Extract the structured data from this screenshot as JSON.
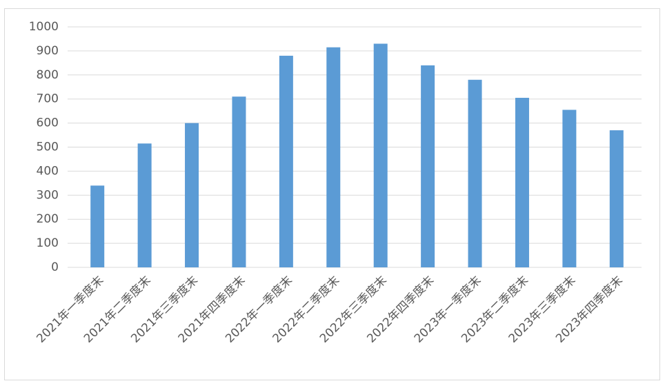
{
  "chart_data": {
    "type": "bar",
    "categories": [
      "2021年一季度末",
      "2021年二季度末",
      "2021年三季度末",
      "2021年四季度末",
      "2022年一季度末",
      "2022年二季度末",
      "2022年三季度末",
      "2022年四季度末",
      "2023年一季度末",
      "2023年二季度末",
      "2023年三季度末",
      "2023年四季度末"
    ],
    "values": [
      340,
      515,
      600,
      710,
      880,
      915,
      930,
      840,
      780,
      705,
      655,
      570
    ],
    "color": "#5b9bd5",
    "ylim": [
      0,
      1000
    ],
    "yticks": [
      0,
      100,
      200,
      300,
      400,
      500,
      600,
      700,
      800,
      900,
      1000
    ],
    "grid": true
  }
}
